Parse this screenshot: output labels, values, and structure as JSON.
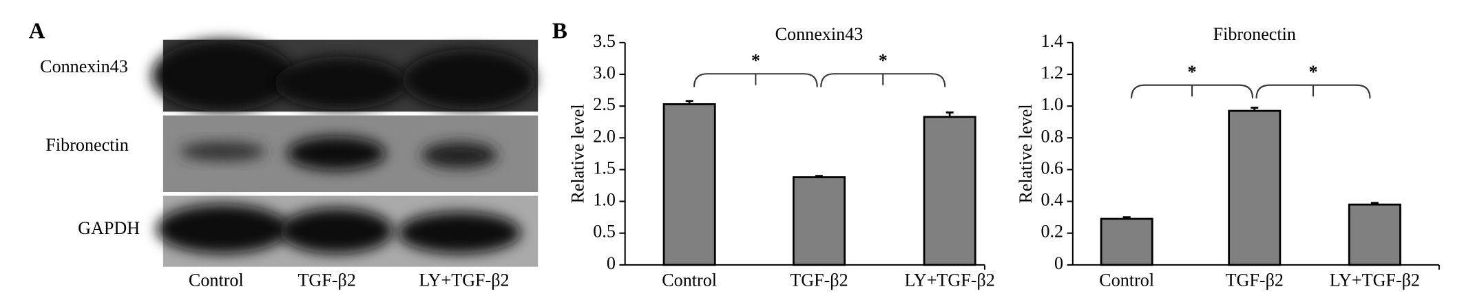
{
  "panel_labels": [
    "A",
    "B"
  ],
  "blot": {
    "rows": [
      "Connexin43",
      "Fibronectin",
      "GAPDH"
    ],
    "lanes": [
      "Control",
      "TGF-β2",
      "LY+TGF-β2"
    ]
  },
  "chart_data": [
    {
      "type": "bar",
      "title": "Connexin43",
      "y_label": "Relative level",
      "categories": [
        "Control",
        "TGF-β2",
        "LY+TGF-β2"
      ],
      "values": [
        2.53,
        1.38,
        2.33
      ],
      "errors": [
        0.05,
        0.02,
        0.07
      ],
      "color": "#808080",
      "ylim": [
        0,
        3.5
      ],
      "yticks": [
        0,
        0.5,
        {
          "value": 1,
          "label": "1.0"
        },
        1.5,
        {
          "value": 2,
          "label": "2.0"
        },
        2.5,
        {
          "value": 3,
          "label": "3.0"
        },
        3.5
      ],
      "annotations": [
        "*",
        "*"
      ]
    },
    {
      "type": "bar",
      "title": "Fibronectin",
      "y_label": "Relative level",
      "categories": [
        "Control",
        "TGF-β2",
        "LY+TGF-β2"
      ],
      "values": [
        0.29,
        0.97,
        0.38
      ],
      "errors": [
        0.01,
        0.02,
        0.01
      ],
      "color": "#808080",
      "ylim": [
        0,
        1.4
      ],
      "yticks": [
        0,
        0.2,
        0.4,
        0.6,
        0.8,
        {
          "value": 1,
          "label": "1.0"
        },
        1.2,
        1.4
      ],
      "annotations": [
        "*",
        "*"
      ]
    }
  ]
}
